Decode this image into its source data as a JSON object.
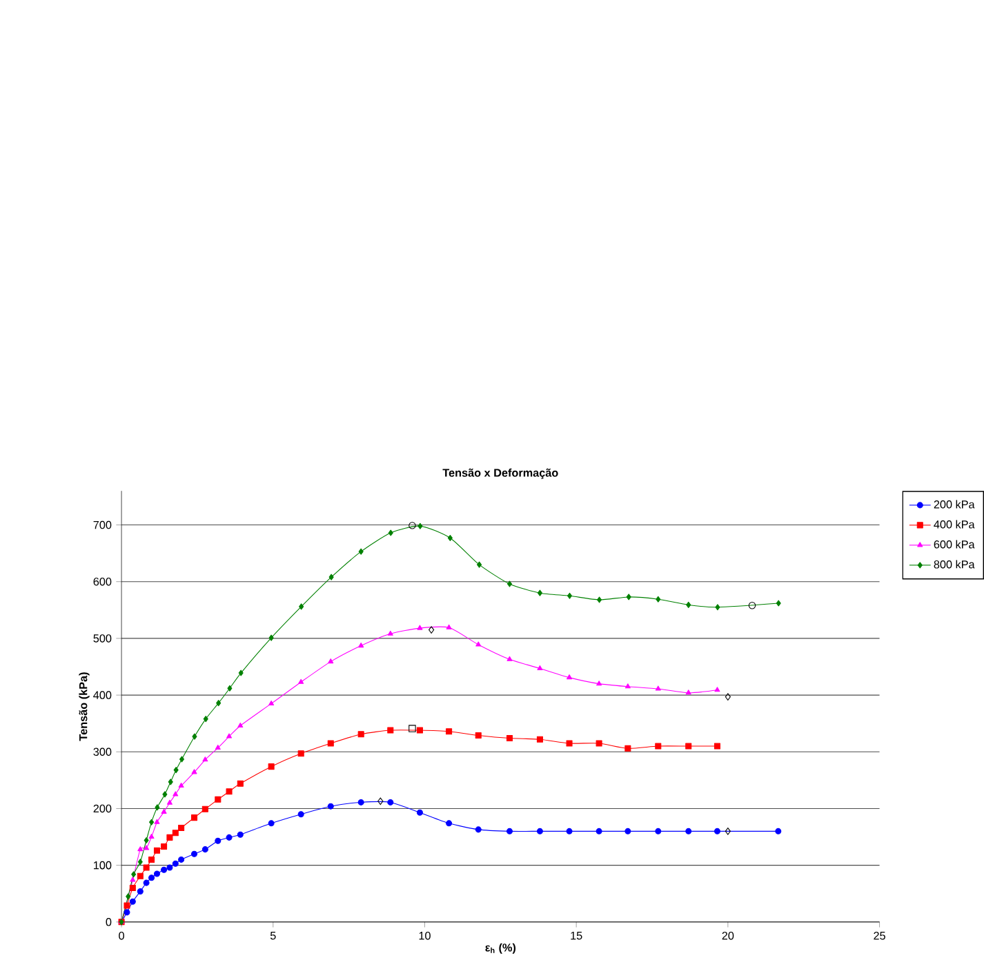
{
  "chart_data": {
    "type": "line",
    "title": "Tensão x Deformação",
    "xlabel": "ε$_{h}$ (%)",
    "ylabel": "Tensão (kPa)",
    "xlim": [
      0,
      25
    ],
    "ylim": [
      0,
      760
    ],
    "xticks": [
      0,
      5,
      10,
      15,
      20,
      25
    ],
    "yticks": [
      0,
      100,
      200,
      300,
      400,
      500,
      600,
      700
    ],
    "grid": "y",
    "legend": "right",
    "series": [
      {
        "name": "200 kPa",
        "color": "#0000ff",
        "marker": "circle",
        "x": [
          0,
          0.18,
          0.37,
          0.62,
          0.82,
          0.99,
          1.17,
          1.4,
          1.59,
          1.78,
          1.97,
          2.4,
          2.76,
          3.18,
          3.55,
          3.92,
          4.94,
          5.92,
          6.9,
          7.9,
          8.87,
          9.84,
          10.8,
          11.77,
          12.8,
          13.8,
          14.77,
          15.75,
          16.7,
          17.7,
          18.7,
          19.65,
          21.66
        ],
        "values": [
          0,
          17,
          36,
          54,
          69,
          78,
          85,
          92,
          96,
          103,
          110,
          120,
          128,
          143,
          149,
          154,
          174,
          190,
          204,
          211,
          211,
          193,
          174,
          163,
          160,
          160,
          160,
          160,
          160,
          160,
          160,
          160,
          160
        ]
      },
      {
        "name": "400 kPa",
        "color": "#ff0000",
        "marker": "square",
        "x": [
          0,
          0.18,
          0.37,
          0.62,
          0.82,
          0.99,
          1.17,
          1.4,
          1.59,
          1.78,
          1.97,
          2.4,
          2.76,
          3.18,
          3.55,
          3.92,
          4.94,
          5.92,
          6.9,
          7.9,
          8.87,
          9.84,
          10.8,
          11.77,
          12.8,
          13.8,
          14.77,
          15.75,
          16.7,
          17.7,
          18.7,
          19.65
        ],
        "values": [
          0,
          29,
          60,
          81,
          96,
          110,
          126,
          133,
          149,
          157,
          166,
          184,
          199,
          216,
          230,
          244,
          274,
          297,
          315,
          331,
          338,
          338,
          336,
          329,
          324,
          322,
          315,
          315,
          306,
          310,
          310,
          310
        ]
      },
      {
        "name": "600 kPa",
        "color": "#ff00ff",
        "marker": "triangle",
        "x": [
          0,
          0.37,
          0.62,
          0.82,
          0.99,
          1.17,
          1.4,
          1.59,
          1.78,
          1.97,
          2.4,
          2.76,
          3.18,
          3.55,
          3.92,
          4.94,
          5.92,
          6.9,
          7.9,
          8.87,
          9.84,
          10.8,
          11.77,
          12.8,
          13.8,
          14.77,
          15.75,
          16.7,
          17.7,
          18.7,
          19.65
        ],
        "values": [
          0,
          74,
          128,
          130,
          150,
          176,
          194,
          210,
          225,
          240,
          264,
          286,
          307,
          327,
          346,
          385,
          423,
          459,
          487,
          508,
          518,
          519,
          489,
          463,
          447,
          431,
          420,
          415,
          411,
          404,
          409
        ]
      },
      {
        "name": "800 kPa",
        "color": "#008000",
        "marker": "diamond",
        "x": [
          0,
          0.22,
          0.4,
          0.62,
          0.82,
          0.99,
          1.18,
          1.43,
          1.62,
          1.8,
          1.99,
          2.41,
          2.78,
          3.2,
          3.57,
          3.94,
          4.94,
          5.93,
          6.92,
          7.9,
          8.88,
          9.85,
          10.84,
          11.8,
          12.8,
          13.8,
          14.78,
          15.76,
          16.73,
          17.7,
          18.7,
          19.66,
          21.67
        ],
        "values": [
          0,
          45,
          84,
          106,
          144,
          176,
          202,
          225,
          247,
          268,
          287,
          327,
          358,
          386,
          412,
          439,
          501,
          556,
          608,
          653,
          686,
          698,
          677,
          630,
          596,
          580,
          575,
          568,
          573,
          569,
          559,
          555,
          562
        ]
      },
      {
        "type": "scatter",
        "color": "#000000",
        "marker": "diamond",
        "x": [
          8.54,
          20.0
        ],
        "values": [
          213,
          160
        ]
      },
      {
        "type": "scatter",
        "color": "#000000",
        "marker": "square",
        "x": [
          9.59
        ],
        "values": [
          341
        ]
      },
      {
        "type": "scatter",
        "color": "#000000",
        "marker": "diamond",
        "x": [
          10.22,
          20.0
        ],
        "values": [
          515,
          397
        ]
      },
      {
        "type": "scatter",
        "color": "#000000",
        "marker": "circle",
        "x": [
          9.59,
          20.8
        ],
        "values": [
          699,
          558
        ]
      }
    ]
  }
}
